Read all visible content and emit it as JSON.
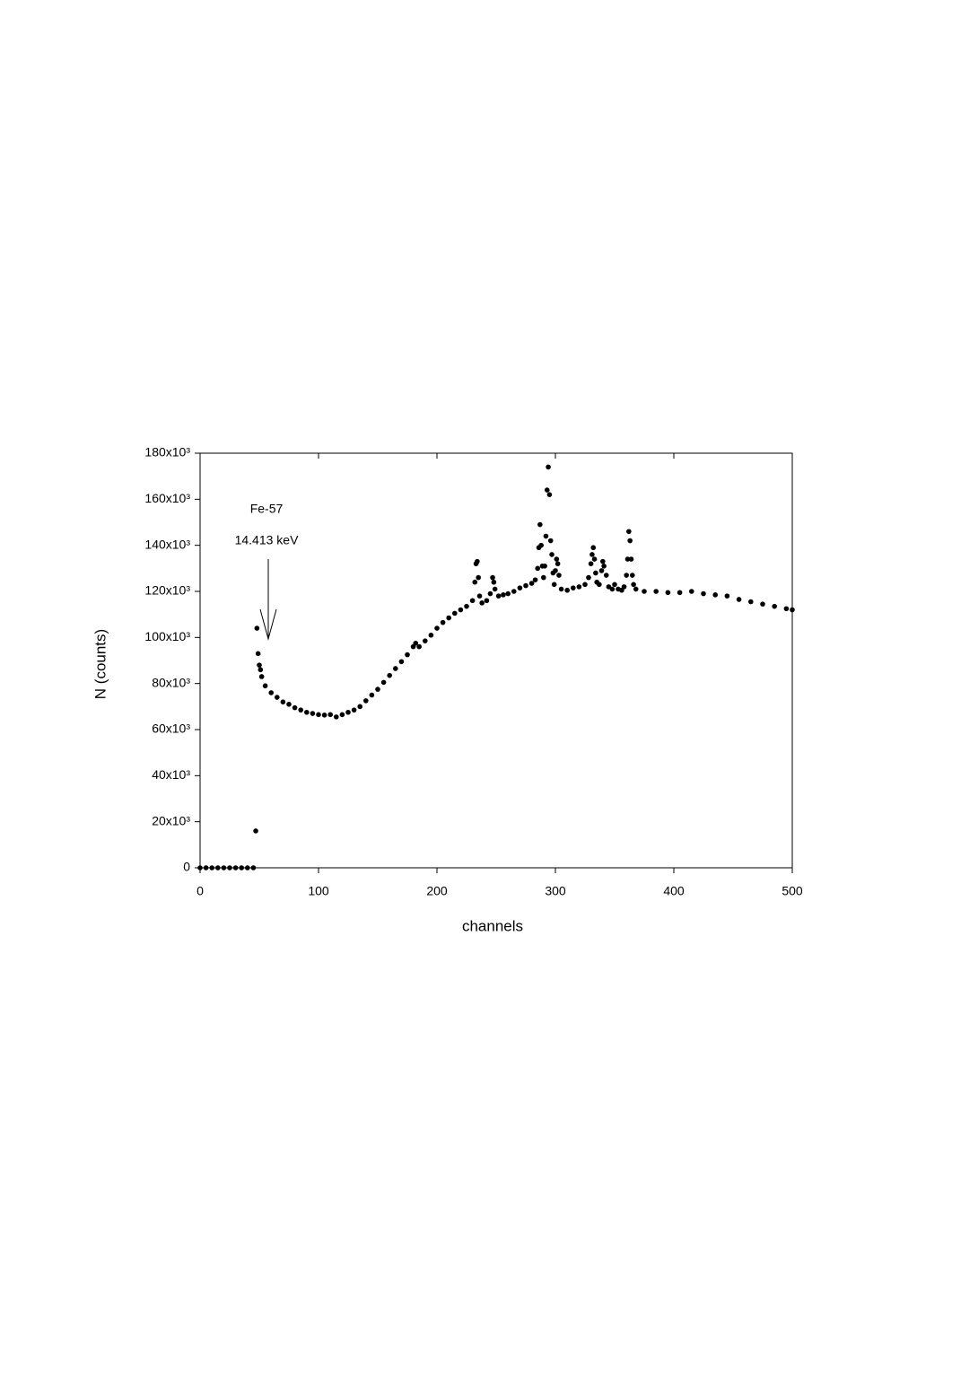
{
  "chart_data": {
    "type": "scatter",
    "xlabel": "channels",
    "ylabel": "N (counts)",
    "annotations": [
      "Fe-57",
      "14.413 keV"
    ],
    "color": "#000000",
    "x": [
      0,
      5,
      10,
      15,
      20,
      25,
      30,
      35,
      40,
      45,
      47,
      48,
      49,
      50,
      51,
      52,
      55,
      60,
      65,
      70,
      75,
      80,
      85,
      90,
      95,
      100,
      105,
      110,
      115,
      120,
      125,
      130,
      135,
      140,
      145,
      150,
      155,
      160,
      165,
      170,
      175,
      180,
      182,
      185,
      190,
      195,
      200,
      205,
      210,
      215,
      220,
      225,
      230,
      232,
      233,
      234,
      235,
      236,
      238,
      242,
      245,
      247,
      248,
      249,
      252,
      256,
      260,
      265,
      270,
      275,
      280,
      283,
      285,
      286,
      287,
      288,
      289,
      290,
      291,
      292,
      293,
      294,
      295,
      296,
      297,
      298,
      299,
      300,
      301,
      302,
      303,
      305,
      310,
      315,
      320,
      325,
      328,
      330,
      331,
      332,
      333,
      334,
      335,
      337,
      339,
      340,
      341,
      343,
      345,
      348,
      350,
      353,
      356,
      358,
      360,
      361,
      362,
      363,
      364,
      365,
      366,
      368,
      375,
      385,
      395,
      405,
      415,
      425,
      435,
      445,
      455,
      465,
      475,
      485,
      495,
      500
    ],
    "values": [
      0,
      0,
      0,
      0,
      0,
      0,
      0,
      0,
      0,
      0,
      16000,
      104000,
      93000,
      88000,
      86000,
      83000,
      79000,
      76000,
      74000,
      72000,
      71000,
      69500,
      68500,
      67500,
      67000,
      66500,
      66300,
      66500,
      65500,
      66500,
      67500,
      68500,
      70000,
      72500,
      75000,
      77500,
      80500,
      83500,
      86500,
      89500,
      92500,
      96000,
      97500,
      96000,
      98500,
      101000,
      104000,
      106500,
      108500,
      110500,
      112000,
      113500,
      116000,
      124000,
      132000,
      133000,
      126000,
      118000,
      115000,
      116000,
      119000,
      126000,
      124000,
      121000,
      118000,
      118500,
      119000,
      120000,
      121500,
      122500,
      123500,
      125000,
      130000,
      139000,
      149000,
      140000,
      131000,
      126000,
      131000,
      144000,
      164000,
      174000,
      162000,
      142000,
      136000,
      128000,
      123000,
      129000,
      134000,
      132000,
      127000,
      121000,
      120500,
      121500,
      122000,
      123000,
      126000,
      132000,
      136000,
      139000,
      134000,
      128000,
      124000,
      123000,
      129000,
      133000,
      131000,
      127000,
      122000,
      121000,
      123000,
      121000,
      120500,
      122000,
      127000,
      134000,
      146000,
      142000,
      134000,
      127000,
      123000,
      121000,
      120000,
      120000,
      119500,
      119500,
      120000,
      119000,
      118500,
      118000,
      116500,
      115500,
      114500,
      113500,
      112500,
      112000
    ],
    "xlim": [
      0,
      500
    ],
    "xticks": [
      0,
      100,
      200,
      300,
      400,
      500
    ],
    "ylim": [
      0,
      180000
    ],
    "yticks": [
      0,
      {
        "value": 20000,
        "label": "20x10³"
      },
      {
        "value": 40000,
        "label": "40x10³"
      },
      {
        "value": 60000,
        "label": "60x10³"
      },
      {
        "value": 80000,
        "label": "80x10³"
      },
      {
        "value": 100000,
        "label": "100x10³"
      },
      {
        "value": 120000,
        "label": "120x10³"
      },
      {
        "value": 140000,
        "label": "140x10³"
      },
      {
        "value": 160000,
        "label": "160x10³"
      },
      {
        "value": 180000,
        "label": "180x10³"
      }
    ],
    "grid": false
  }
}
